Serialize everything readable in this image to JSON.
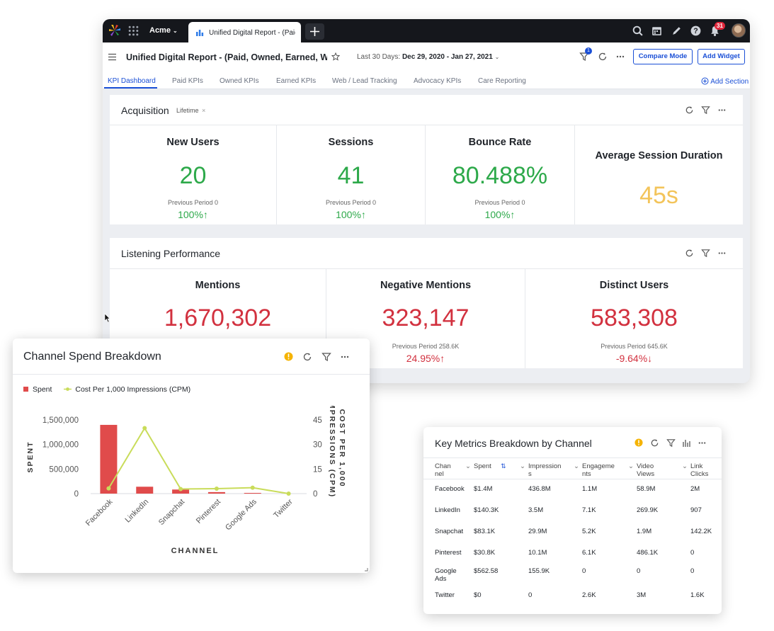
{
  "app": {
    "workspace": "Acme",
    "tab_title": "Unified Digital Report - (Paid, Owned, Earned, Web a",
    "notification_count": "31"
  },
  "header": {
    "title": "Unified Digital Report - (Paid, Owned, Earned, Web a",
    "date_label": "Last 30 Days:",
    "date_value": "Dec 29, 2020 - Jan 27, 2021",
    "filter_count": "1",
    "compare_mode": "Compare Mode",
    "add_widget": "Add Widget"
  },
  "tabs": [
    {
      "label": "KPI Dashboard"
    },
    {
      "label": "Paid KPIs"
    },
    {
      "label": "Owned KPIs"
    },
    {
      "label": "Earned KPIs"
    },
    {
      "label": "Web / Lead Tracking"
    },
    {
      "label": "Advocacy KPIs"
    },
    {
      "label": "Care Reporting"
    }
  ],
  "add_section": "Add Section",
  "acquisition": {
    "title": "Acquisition",
    "period": "Lifetime",
    "kpis": [
      {
        "name": "New Users",
        "value": "20",
        "previous": "Previous Period 0",
        "change": "100%"
      },
      {
        "name": "Sessions",
        "value": "41",
        "previous": "Previous Period 0",
        "change": "100%"
      },
      {
        "name": "Bounce Rate",
        "value": "80.488%",
        "previous": "Previous Period 0",
        "change": "100%"
      },
      {
        "name": "Average Session Duration",
        "value": "45s"
      }
    ]
  },
  "listening": {
    "title": "Listening Performance",
    "kpis": [
      {
        "name": "Mentions",
        "value": "1,670,302"
      },
      {
        "name": "Negative Mentions",
        "value": "323,147",
        "previous": "Previous Period 258.6K",
        "change": "24.95%"
      },
      {
        "name": "Distinct Users",
        "value": "583,308",
        "previous": "Previous Period 645.6K",
        "change": "-9.64%"
      }
    ]
  },
  "channel_spend": {
    "title": "Channel Spend Breakdown",
    "legend": [
      "Spent",
      "Cost Per 1,000 Impressions (CPM)"
    ]
  },
  "chart_data": {
    "type": "bar",
    "title": "Channel Spend Breakdown",
    "categories": [
      "Facebook",
      "LinkedIn",
      "Snapchat",
      "Pinterest",
      "Google Ads",
      "Twitter"
    ],
    "series": [
      {
        "name": "Spent",
        "type": "bar",
        "axis": "left",
        "color": "#e04b4b",
        "values": [
          1400000,
          140300,
          83100,
          30800,
          562.58,
          0
        ]
      },
      {
        "name": "Cost Per 1,000 Impressions (CPM)",
        "type": "line",
        "axis": "right",
        "color": "#c9dc5a",
        "values": [
          3.2,
          40,
          2.8,
          3.05,
          3.6,
          0
        ]
      }
    ],
    "xlabel": "CHANNEL",
    "ylabel": "SPENT",
    "y2label": "COST PER 1,000 IMPRESSIONS (CPM)",
    "ylim": [
      0,
      1500000
    ],
    "y2lim": [
      0,
      45
    ],
    "yticks": [
      "1,500,000",
      "1,000,000",
      "500,000",
      "0"
    ],
    "y2ticks": [
      "45",
      "30",
      "15",
      "0"
    ],
    "legend": "top-left"
  },
  "key_metrics": {
    "title": "Key Metrics Breakdown by Channel",
    "headers": [
      "Chan\nnel",
      "Spent",
      "Impression\ns",
      "Engageme\nnts",
      "Video\nViews",
      "Link Clicks"
    ],
    "rows": [
      [
        "Facebook",
        "$1.4M",
        "436.8M",
        "1.1M",
        "58.9M",
        "2M"
      ],
      [
        "LinkedIn",
        "$140.3K",
        "3.5M",
        "7.1K",
        "269.9K",
        "907"
      ],
      [
        "Snapchat",
        "$83.1K",
        "29.9M",
        "5.2K",
        "1.9M",
        "142.2K"
      ],
      [
        "Pinterest",
        "$30.8K",
        "10.1M",
        "6.1K",
        "486.1K",
        "0"
      ],
      [
        "Google\nAds",
        "$562.58",
        "155.9K",
        "0",
        "0",
        "0"
      ],
      [
        "Twitter",
        "$0",
        "0",
        "2.6K",
        "3M",
        "1.6K"
      ]
    ]
  },
  "colors": {
    "accent": "#1a4fd6",
    "positive": "#2da94a",
    "negative": "#d2313f",
    "neutral_value": "#f3c45a",
    "bar": "#e04b4b",
    "line": "#c9dc5a"
  }
}
